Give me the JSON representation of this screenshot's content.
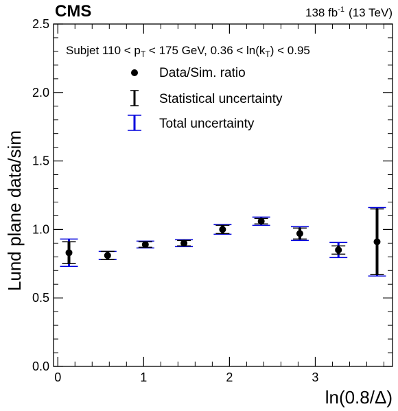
{
  "chart_data": {
    "type": "scatter",
    "experiment": "CMS",
    "lumi": {
      "value": "138 fb",
      "exponent": "-1",
      "energy": "(13 TeV)"
    },
    "selection": {
      "prefix": "Subjet 110 < p",
      "pt_sub": "T",
      "middle": " < 175 GeV, 0.36 < ln(k",
      "kt_sub": "T",
      "suffix": ") < 0.95"
    },
    "xlabel": "ln(0.8/Δ)",
    "ylabel": "Lund plane data/sim",
    "xlim": [
      -0.05,
      3.9
    ],
    "ylim": [
      0.0,
      2.5
    ],
    "xticks": [
      "0",
      "1",
      "2",
      "3"
    ],
    "yticks": [
      "0.0",
      "0.5",
      "1.0",
      "1.5",
      "2.0",
      "2.5"
    ],
    "grid": false,
    "legend_position": "top-center",
    "legend": [
      {
        "label": "Data/Sim. ratio",
        "symbol": "marker"
      },
      {
        "label": "Statistical uncertainty",
        "symbol": "stat-bar"
      },
      {
        "label": "Total uncertainty",
        "symbol": "total-bar"
      }
    ],
    "colors": {
      "data": "#000000",
      "total_uncertainty": "#0000dd"
    },
    "points": [
      {
        "x": 0.13,
        "y": 0.83,
        "stat": 0.08,
        "total_up": 0.1,
        "total_down": 0.1
      },
      {
        "x": 0.58,
        "y": 0.81,
        "stat": 0.03,
        "total_up": 0.03,
        "total_down": 0.03
      },
      {
        "x": 1.02,
        "y": 0.89,
        "stat": 0.02,
        "total_up": 0.025,
        "total_down": 0.025
      },
      {
        "x": 1.47,
        "y": 0.9,
        "stat": 0.02,
        "total_up": 0.025,
        "total_down": 0.025
      },
      {
        "x": 1.92,
        "y": 1.0,
        "stat": 0.03,
        "total_up": 0.035,
        "total_down": 0.035
      },
      {
        "x": 2.37,
        "y": 1.06,
        "stat": 0.02,
        "total_up": 0.03,
        "total_down": 0.03
      },
      {
        "x": 2.82,
        "y": 0.97,
        "stat": 0.04,
        "total_up": 0.05,
        "total_down": 0.05
      },
      {
        "x": 3.27,
        "y": 0.85,
        "stat": 0.03,
        "total_up": 0.055,
        "total_down": 0.055
      },
      {
        "x": 3.72,
        "y": 0.91,
        "stat": 0.24,
        "total_up": 0.25,
        "total_down": 0.25
      }
    ]
  }
}
